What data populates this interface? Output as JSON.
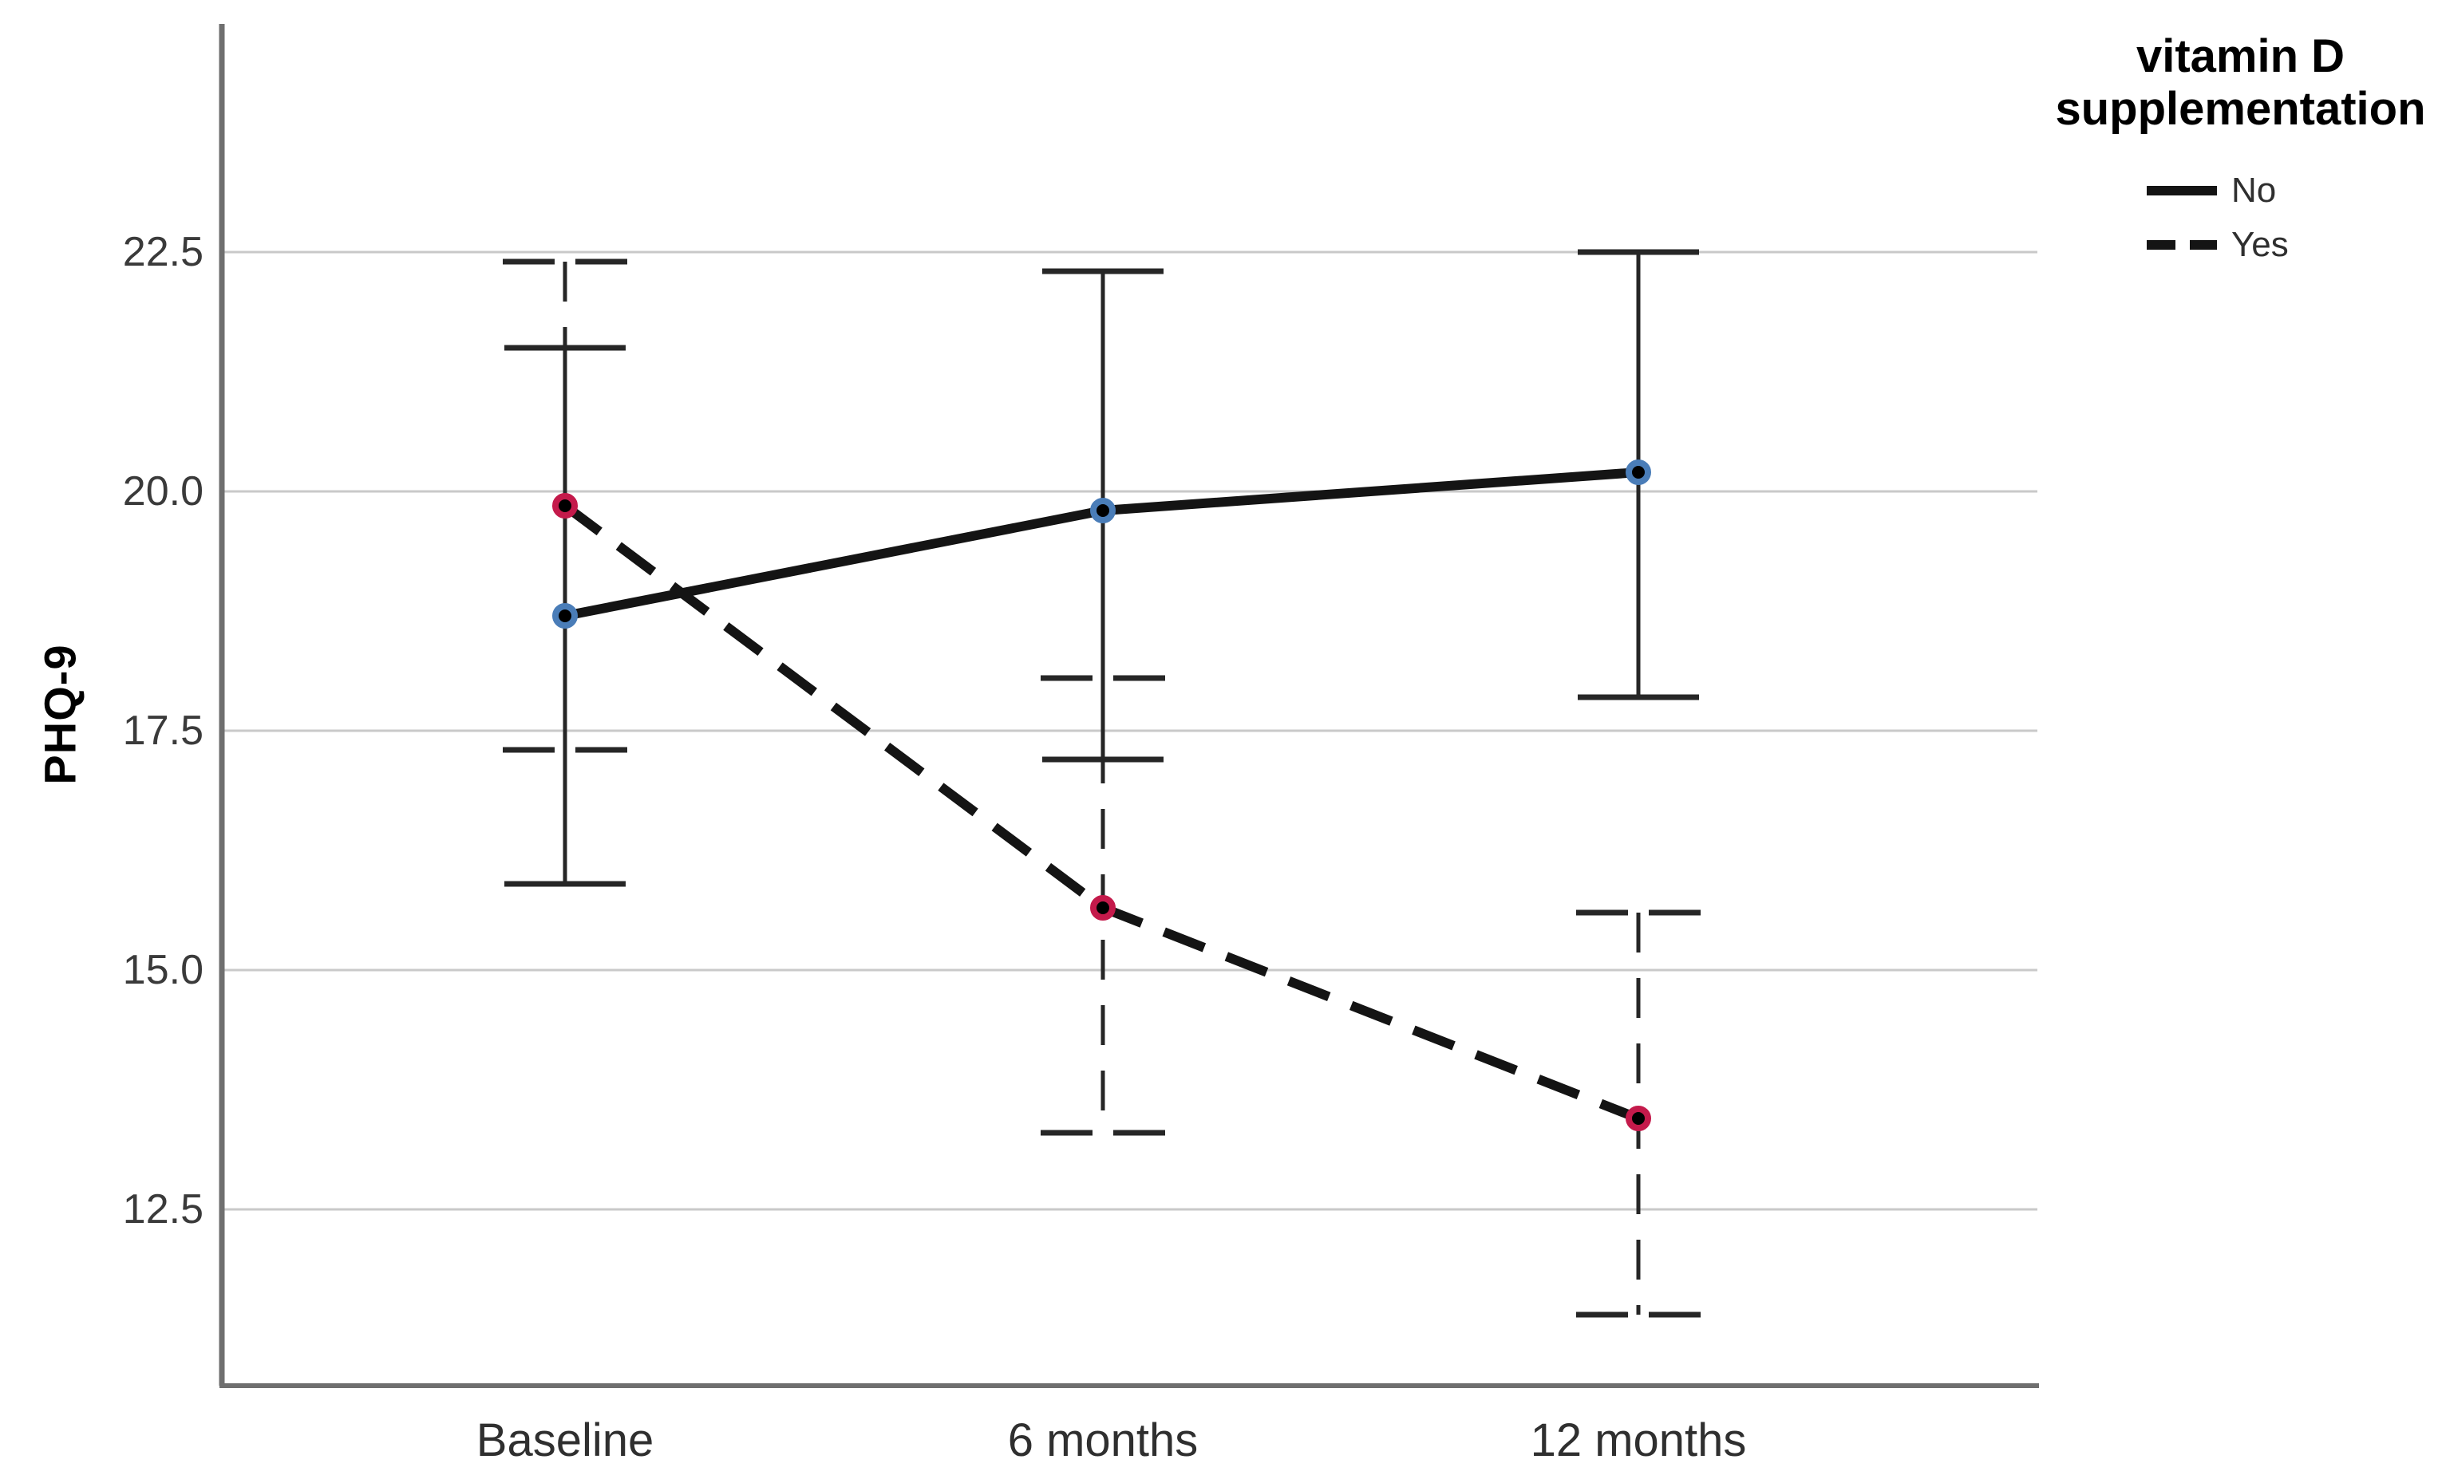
{
  "chart_data": {
    "type": "line",
    "title": "",
    "ylabel": "PHQ-9",
    "xlabel": "",
    "categories": [
      "Baseline",
      "6 months",
      "12 months"
    ],
    "ytick_labels": [
      "22.5",
      "20.0",
      "17.5",
      "15.0",
      "12.5"
    ],
    "yticks": [
      22.5,
      20.0,
      17.5,
      15.0,
      12.5
    ],
    "ylim": [
      10.7,
      24.7
    ],
    "grid": "horizontal-only",
    "error_bars": "95% CI whiskers with caps",
    "legend": {
      "title": "vitamin D supplementation",
      "title_lines": [
        "vitamin D",
        "supplementation"
      ],
      "position": "top-right",
      "items": [
        {
          "label": "No",
          "line_style": "solid"
        },
        {
          "label": "Yes",
          "line_style": "dashed"
        }
      ]
    },
    "series": [
      {
        "name": "No",
        "line_style": "solid",
        "line_color": "#141414",
        "marker_core_color": "#000000",
        "marker_ring_color": "#4a7db8",
        "values": [
          18.7,
          19.8,
          20.2
        ],
        "ci_high": [
          21.5,
          22.3,
          22.5
        ],
        "ci_low": [
          15.9,
          17.2,
          17.85
        ]
      },
      {
        "name": "Yes",
        "line_style": "dashed",
        "line_color": "#141414",
        "marker_core_color": "#000000",
        "marker_ring_color": "#c41a4b",
        "values": [
          19.85,
          15.65,
          13.45
        ],
        "ci_high": [
          22.4,
          18.05,
          15.6
        ],
        "ci_low": [
          17.3,
          13.3,
          11.4
        ]
      }
    ],
    "colors": {
      "grid": "#c9c9c9",
      "axis": "#6f6f6f",
      "error_bar": "#262626",
      "tick_text": "#3a3a3a",
      "label_text": "#000000"
    }
  }
}
